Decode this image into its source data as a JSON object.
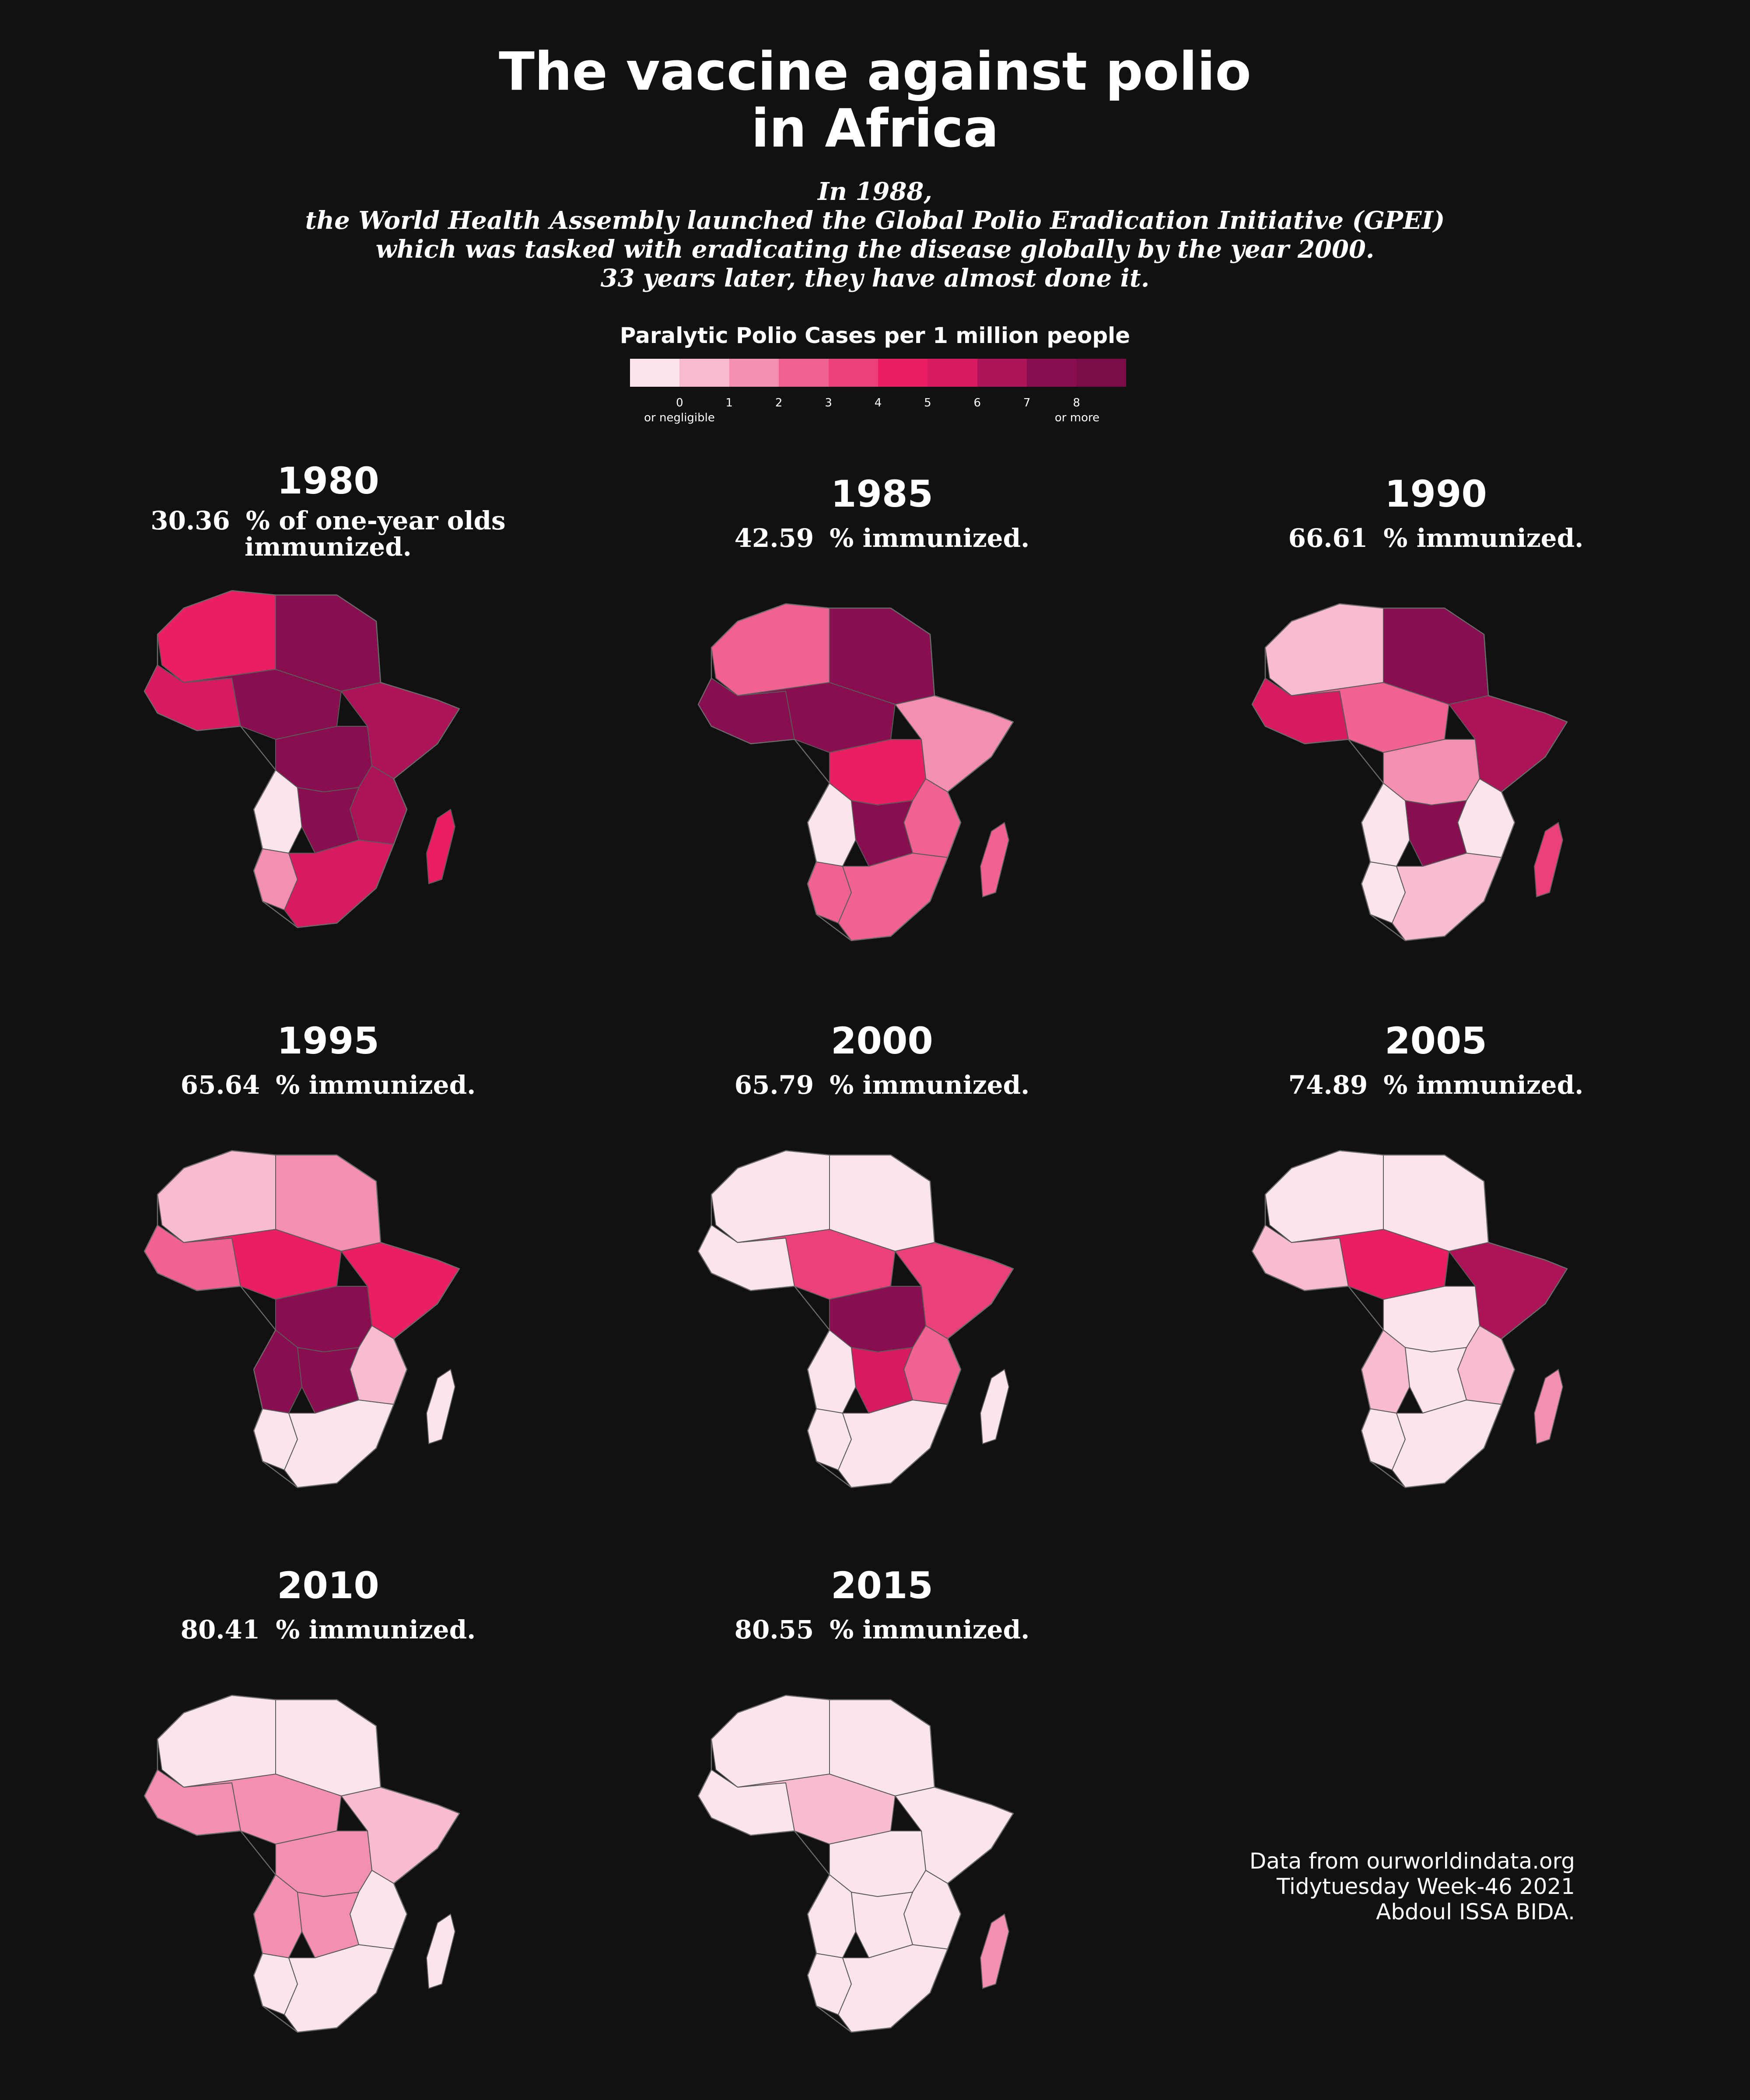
{
  "title": [
    "The vaccine against polio",
    "in Africa"
  ],
  "subtitle": [
    "In 1988,",
    "the World Health Assembly launched the Global Polio Eradication Initiative (GPEI)",
    "which was tasked with eradicating the disease globally by the year 2000.",
    "33 years later, they have almost done it."
  ],
  "legend": {
    "title": "Paralytic Polio Cases per 1 million people",
    "colors": [
      "#fce4ec",
      "#f8bbd0",
      "#f48fb1",
      "#f06292",
      "#ec407a",
      "#e91e63",
      "#d81b60",
      "#ad1457",
      "#880e4f",
      "#7b0c46"
    ],
    "ticks": [
      "0",
      "1",
      "2",
      "3",
      "4",
      "5",
      "6",
      "7",
      "8"
    ],
    "note_low": "or negligible",
    "note_high": "or more"
  },
  "panels": [
    {
      "year": "1980",
      "immunized": "30.36",
      "label": "% of  one-year  olds",
      "label2": "immunized.",
      "regions": {
        "nw": 5,
        "ne": 8,
        "w": 6,
        "sahel": 8,
        "c": 8,
        "e": 7,
        "horn": 7,
        "sc": 8,
        "s": 2,
        "sw": 0,
        "se": 6,
        "mad": 5
      }
    },
    {
      "year": "1985",
      "immunized": "42.59",
      "label": "% immunized.",
      "regions": {
        "nw": 3,
        "ne": 8,
        "w": 8,
        "sahel": 8,
        "c": 5,
        "e": 3,
        "horn": 2,
        "sc": 8,
        "s": 3,
        "sw": 0,
        "se": 3,
        "mad": 3
      }
    },
    {
      "year": "1990",
      "immunized": "66.61",
      "label": "% immunized.",
      "regions": {
        "nw": 1,
        "ne": 8,
        "w": 6,
        "sahel": 3,
        "c": 2,
        "e": 0,
        "horn": 7,
        "sc": 8,
        "s": 0,
        "sw": 0,
        "se": 1,
        "mad": 4
      }
    },
    {
      "year": "1995",
      "immunized": "65.64",
      "label": "% immunized.",
      "regions": {
        "nw": 1,
        "ne": 2,
        "w": 3,
        "sahel": 5,
        "c": 8,
        "e": 1,
        "horn": 5,
        "sc": 8,
        "s": 0,
        "sw": 8,
        "se": 0,
        "mad": 0
      }
    },
    {
      "year": "2000",
      "immunized": "65.79",
      "label": "% immunized.",
      "regions": {
        "nw": 0,
        "ne": 0,
        "w": 0,
        "sahel": 4,
        "c": 8,
        "e": 3,
        "horn": 4,
        "sc": 6,
        "s": 0,
        "sw": 0,
        "se": 0,
        "mad": 0
      }
    },
    {
      "year": "2005",
      "immunized": "74.89",
      "label": "% immunized.",
      "regions": {
        "nw": 0,
        "ne": 0,
        "w": 1,
        "sahel": 5,
        "c": 0,
        "e": 1,
        "horn": 7,
        "sc": 0,
        "s": 0,
        "sw": 1,
        "se": 0,
        "mad": 2
      }
    },
    {
      "year": "2010",
      "immunized": "80.41",
      "label": "% immunized.",
      "regions": {
        "nw": 0,
        "ne": 0,
        "w": 2,
        "sahel": 2,
        "c": 2,
        "e": 0,
        "horn": 1,
        "sc": 2,
        "s": 0,
        "sw": 2,
        "se": 0,
        "mad": 0
      }
    },
    {
      "year": "2015",
      "immunized": "80.55",
      "label": "% immunized.",
      "regions": {
        "nw": 0,
        "ne": 0,
        "w": 0,
        "sahel": 1,
        "c": 0,
        "e": 0,
        "horn": 0,
        "sc": 0,
        "s": 0,
        "sw": 0,
        "se": 0,
        "mad": 2
      }
    }
  ],
  "credits": [
    "Data from ourworldindata.org",
    "Tidytuesday Week-46 2021",
    "Abdoul ISSA BIDA."
  ]
}
